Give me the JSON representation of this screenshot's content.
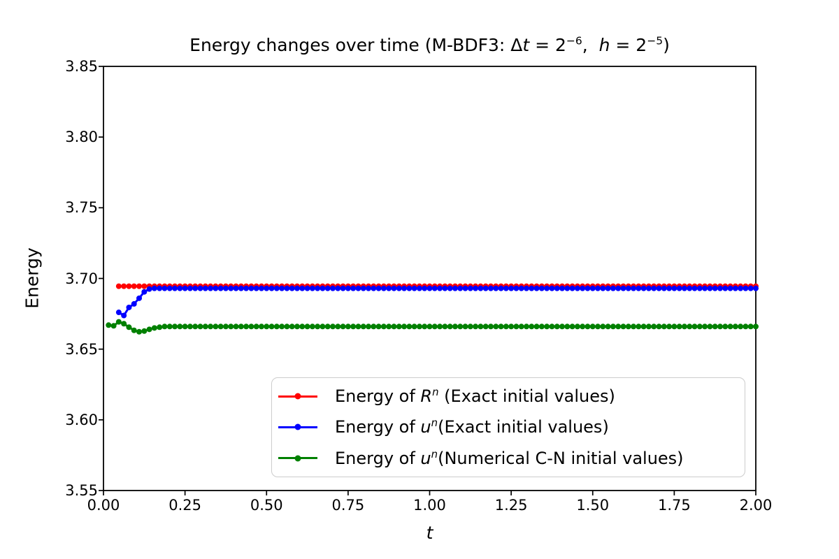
{
  "chart_data": {
    "type": "line",
    "title": "Energy changes over time (M-BDF3: Δt = 2⁻⁶,  h = 2⁻⁵)",
    "title_segments": [
      {
        "text": "Energy changes over time (M-BDF3: Δ"
      },
      {
        "text": "t",
        "style": "italic"
      },
      {
        "text": " = 2"
      },
      {
        "text": "−6",
        "style": "sup"
      },
      {
        "text": ",  "
      },
      {
        "text": "h",
        "style": "italic"
      },
      {
        "text": " = 2"
      },
      {
        "text": "−5",
        "style": "sup"
      },
      {
        "text": ")"
      }
    ],
    "xlabel": "t",
    "ylabel": "Energy",
    "xlim": [
      0.0,
      2.0
    ],
    "ylim": [
      3.55,
      3.85
    ],
    "x_tick_values": [
      0.0,
      0.25,
      0.5,
      0.75,
      1.0,
      1.25,
      1.5,
      1.75,
      2.0
    ],
    "x_tick_labels": [
      "0.00",
      "0.25",
      "0.50",
      "0.75",
      "1.00",
      "1.25",
      "1.50",
      "1.75",
      "2.00"
    ],
    "y_tick_values": [
      3.85,
      3.8,
      3.75,
      3.7,
      3.65,
      3.6,
      3.55
    ],
    "y_tick_labels": [
      "3.85",
      "3.80",
      "3.75",
      "3.70",
      "3.65",
      "3.60",
      "3.55"
    ],
    "grid": false,
    "marker": "circle",
    "dt": 0.015625,
    "legend": {
      "position": "lower right inside",
      "border_color": "#cccccc"
    },
    "series": [
      {
        "label": "Energy of Rⁿ (Exact initial values)",
        "label_segments": [
          {
            "text": "Energy of "
          },
          {
            "text": "R",
            "style": "italic"
          },
          {
            "text": "n",
            "style": "sup-italic"
          },
          {
            "text": " (Exact initial values)"
          }
        ],
        "color": "#ff0000",
        "transient": [],
        "steady_from": 0.046875,
        "steady_value": 3.6945,
        "t_end": 2.0
      },
      {
        "label": "Energy of uⁿ(Exact initial values)",
        "label_segments": [
          {
            "text": "Energy of "
          },
          {
            "text": "u",
            "style": "italic"
          },
          {
            "text": "n",
            "style": "sup-italic"
          },
          {
            "text": "(Exact initial values)"
          }
        ],
        "color": "#0000ff",
        "transient": [
          [
            0.046875,
            3.676
          ],
          [
            0.0625,
            3.6738
          ],
          [
            0.078125,
            3.6795
          ],
          [
            0.09375,
            3.682
          ],
          [
            0.109375,
            3.686
          ],
          [
            0.125,
            3.6905
          ],
          [
            0.140625,
            3.6925
          ]
        ],
        "steady_from": 0.15625,
        "steady_value": 3.693,
        "t_end": 2.0
      },
      {
        "label": "Energy of uⁿ(Numerical C-N initial values)",
        "label_segments": [
          {
            "text": "Energy of "
          },
          {
            "text": "u",
            "style": "italic"
          },
          {
            "text": "n",
            "style": "sup-italic"
          },
          {
            "text": "(Numerical C-N initial values)"
          }
        ],
        "color": "#008000",
        "transient": [
          [
            0.015625,
            3.667
          ],
          [
            0.03125,
            3.6665
          ],
          [
            0.046875,
            3.6693
          ],
          [
            0.0625,
            3.668
          ],
          [
            0.078125,
            3.6655
          ],
          [
            0.09375,
            3.6633
          ],
          [
            0.109375,
            3.6623
          ],
          [
            0.125,
            3.6628
          ],
          [
            0.140625,
            3.664
          ],
          [
            0.15625,
            3.665
          ],
          [
            0.171875,
            3.6655
          ]
        ],
        "steady_from": 0.1875,
        "steady_value": 3.666,
        "t_end": 2.0
      }
    ]
  }
}
